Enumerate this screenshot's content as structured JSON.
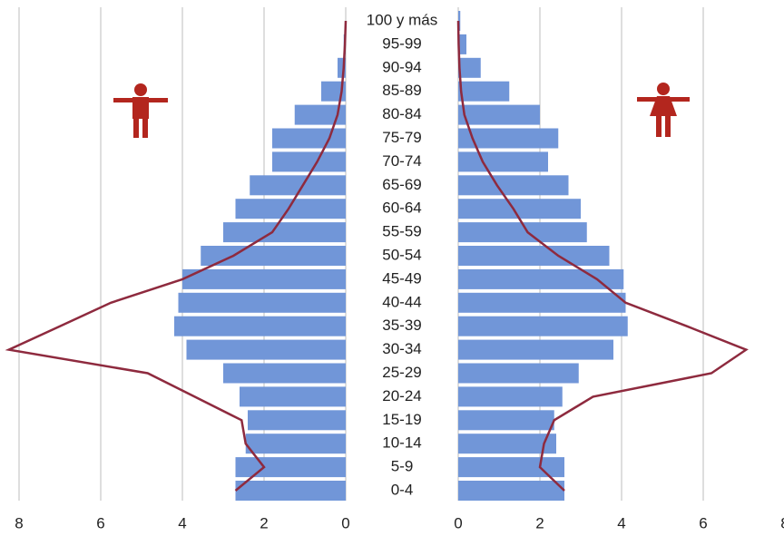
{
  "chart_data": {
    "type": "pyramid",
    "categories": [
      "0-4",
      "5-9",
      "10-14",
      "15-19",
      "20-24",
      "25-29",
      "30-34",
      "35-39",
      "40-44",
      "45-49",
      "50-54",
      "55-59",
      "60-64",
      "65-69",
      "70-74",
      "75-79",
      "80-84",
      "85-89",
      "90-94",
      "95-99",
      "100 y más"
    ],
    "series": [
      {
        "side": "left",
        "style": "bar",
        "color": "#7196d8",
        "values": [
          2.7,
          2.7,
          2.45,
          2.4,
          2.6,
          3.0,
          3.9,
          4.2,
          4.1,
          4.0,
          3.55,
          3.0,
          2.7,
          2.35,
          1.8,
          1.8,
          1.25,
          0.6,
          0.2,
          0.05,
          0
        ]
      },
      {
        "side": "right",
        "style": "bar",
        "color": "#7196d8",
        "values": [
          2.6,
          2.6,
          2.4,
          2.35,
          2.55,
          2.95,
          3.8,
          4.15,
          4.1,
          4.05,
          3.7,
          3.15,
          3.0,
          2.7,
          2.2,
          2.45,
          2.0,
          1.25,
          0.55,
          0.2,
          0.05
        ]
      },
      {
        "side": "left",
        "style": "line",
        "color": "#8e2a3e",
        "values": [
          2.7,
          2.0,
          2.45,
          2.55,
          3.7,
          4.85,
          8.25,
          7.0,
          5.75,
          4.0,
          2.75,
          1.8,
          1.4,
          1.05,
          0.7,
          0.4,
          0.2,
          0.1,
          0.05,
          0.02,
          0
        ]
      },
      {
        "side": "right",
        "style": "line",
        "color": "#8e2a3e",
        "values": [
          2.6,
          2.0,
          2.1,
          2.35,
          3.3,
          6.2,
          7.05,
          5.6,
          4.1,
          3.4,
          2.45,
          1.7,
          1.35,
          0.95,
          0.6,
          0.35,
          0.15,
          0.07,
          0.03,
          0.01,
          0
        ]
      }
    ],
    "xlim": [
      0,
      8.4
    ],
    "xticks": [
      0,
      2,
      4,
      6,
      8
    ],
    "grid": true
  }
}
